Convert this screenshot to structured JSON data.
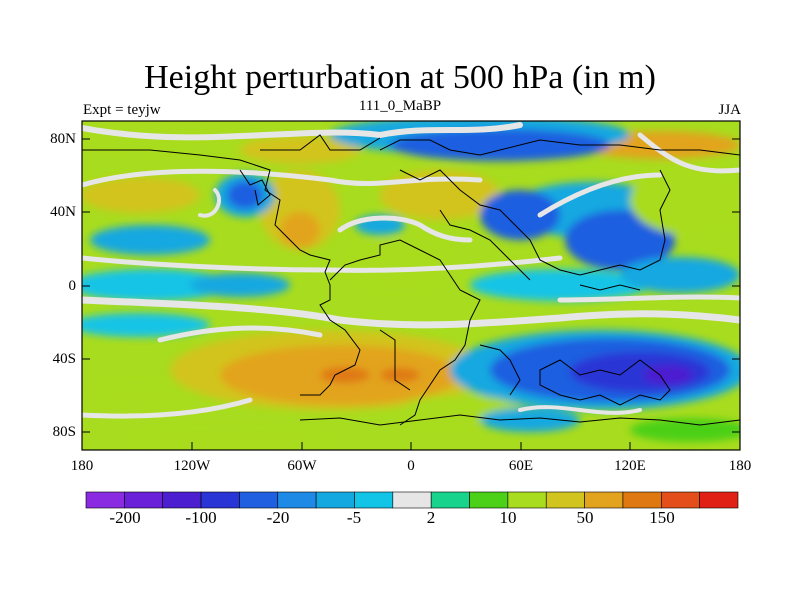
{
  "title": "Height perturbation at 500 hPa (in m)",
  "left_label": "Expt = teyjw",
  "center_label": "111_0_MaBP",
  "right_label": "JJA",
  "x_ticks": [
    "180",
    "120W",
    "60W",
    "0",
    "60E",
    "120E",
    "180"
  ],
  "y_ticks": [
    "80N",
    "40N",
    "0",
    "40S",
    "80S"
  ],
  "colorbar": {
    "colors": [
      "#8a2be2",
      "#6a1fd8",
      "#4b1fd0",
      "#2a35d6",
      "#1f5fe0",
      "#1e8ae6",
      "#14a8e0",
      "#12c4e6",
      "#e6e6e6",
      "#18d38c",
      "#4cd018",
      "#a8dc1e",
      "#d2c41e",
      "#e2a41e",
      "#e07812",
      "#e34e1a",
      "#e02014"
    ],
    "labels": [
      "-200",
      "-100",
      "-20",
      "-5",
      "2",
      "10",
      "50",
      "150"
    ]
  }
}
